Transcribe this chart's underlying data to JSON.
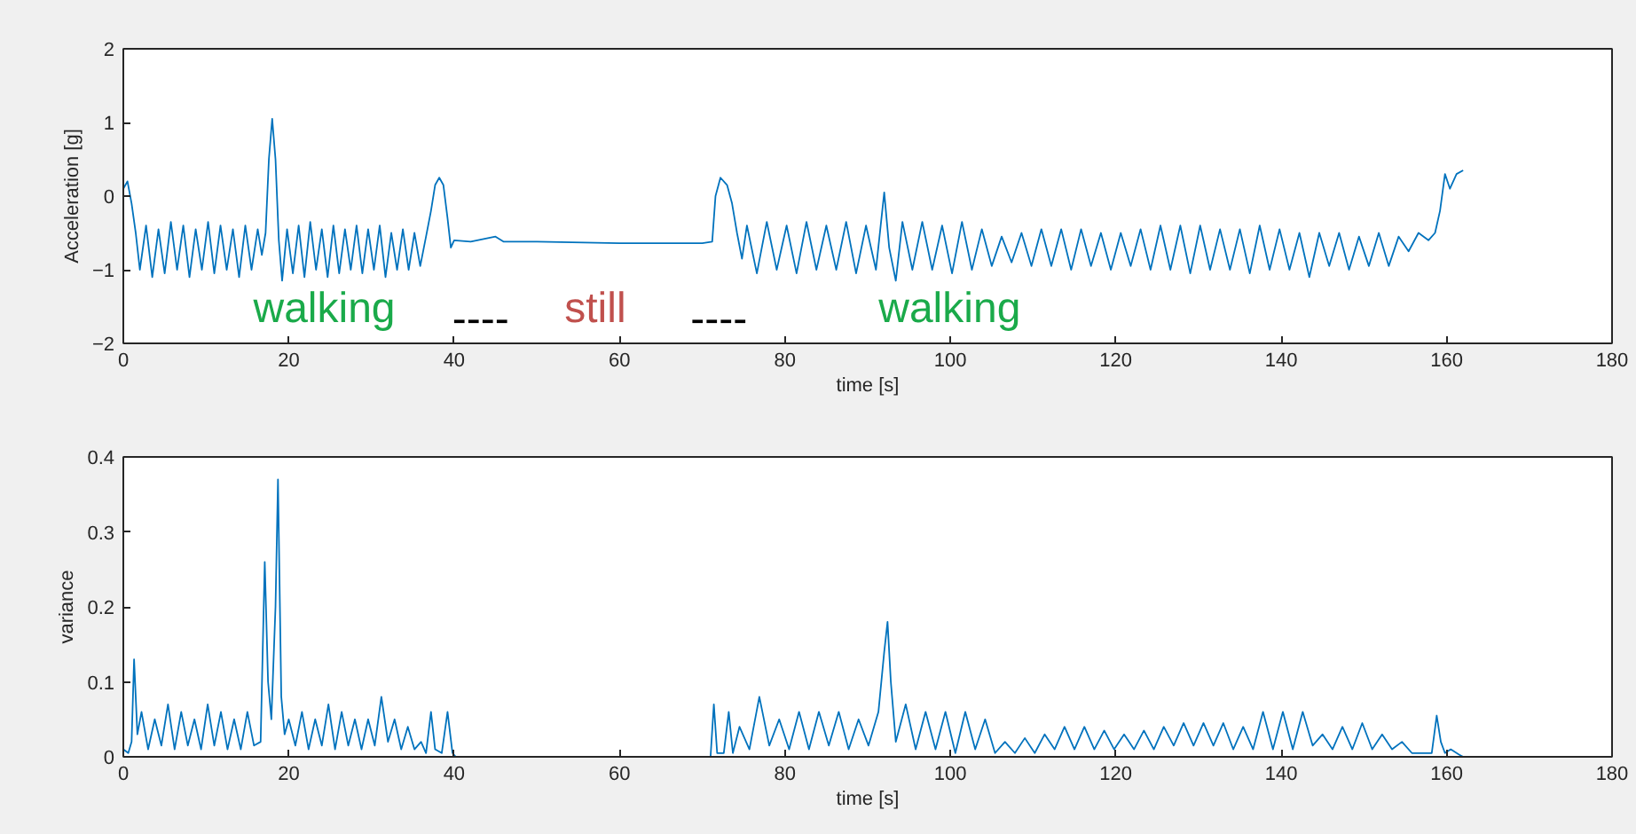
{
  "chart_data": [
    {
      "type": "line",
      "xlabel": "time [s]",
      "ylabel": "Acceleration [g]",
      "xlim": [
        0,
        180
      ],
      "ylim": [
        -2,
        2
      ],
      "xticks": [
        0,
        20,
        40,
        60,
        80,
        100,
        120,
        140,
        160,
        180
      ],
      "yticks": [
        {
          "value": -2,
          "label": "−2"
        },
        {
          "value": -1,
          "label": "−1"
        },
        0,
        1,
        2
      ],
      "grid": false,
      "annotations": [
        "walking",
        "----",
        "still",
        "----",
        "walking"
      ],
      "series": [
        {
          "color": "#0072bd",
          "x": [
            0,
            0.5,
            1,
            1.5,
            2.0,
            2.75,
            3.5,
            4.25,
            5.0,
            5.75,
            6.5,
            7.25,
            8.0,
            8.75,
            9.5,
            10.25,
            11.0,
            11.75,
            12.5,
            13.25,
            14.0,
            14.75,
            15.5,
            16.25,
            16.75,
            17.2,
            17.6,
            18.0,
            18.4,
            18.8,
            19.2,
            19.8,
            20.5,
            21.2,
            21.9,
            22.6,
            23.3,
            24.0,
            24.7,
            25.4,
            26.1,
            26.8,
            27.5,
            28.2,
            28.9,
            29.6,
            30.3,
            31.0,
            31.7,
            32.4,
            33.1,
            33.8,
            34.5,
            35.2,
            35.9,
            36.6,
            37.2,
            37.7,
            38.2,
            38.7,
            39.2,
            39.6,
            40.0,
            42,
            45,
            46,
            50,
            60,
            70,
            71.2,
            71.6,
            72.2,
            73.0,
            73.6,
            74.2,
            74.8,
            75.4,
            76.6,
            77.8,
            79.0,
            80.2,
            81.4,
            82.6,
            83.8,
            85.0,
            86.2,
            87.4,
            88.6,
            89.8,
            91.0,
            92.0,
            92.6,
            93.4,
            94.2,
            95.4,
            96.6,
            97.8,
            99.0,
            100.2,
            101.4,
            102.6,
            103.8,
            105.0,
            106.2,
            107.4,
            108.6,
            109.8,
            111.0,
            112.2,
            113.4,
            114.6,
            115.8,
            117.0,
            118.2,
            119.4,
            120.6,
            121.8,
            123.0,
            124.2,
            125.4,
            126.6,
            127.8,
            129.0,
            130.2,
            131.4,
            132.6,
            133.8,
            135.0,
            136.2,
            137.4,
            138.6,
            139.8,
            141.0,
            142.2,
            143.4,
            144.6,
            145.8,
            147.0,
            148.2,
            149.4,
            150.6,
            151.8,
            153.0,
            154.2,
            155.4,
            156.6,
            157.8,
            158.6,
            159.2,
            159.8,
            160.4,
            161.2,
            162.0
          ],
          "values": [
            0.1,
            0.2,
            -0.1,
            -0.5,
            -1.0,
            -0.4,
            -1.1,
            -0.45,
            -1.05,
            -0.35,
            -1.0,
            -0.4,
            -1.1,
            -0.45,
            -1.0,
            -0.35,
            -1.05,
            -0.4,
            -1.0,
            -0.45,
            -1.1,
            -0.4,
            -1.0,
            -0.45,
            -0.8,
            -0.5,
            0.5,
            1.05,
            0.5,
            -0.6,
            -1.15,
            -0.45,
            -1.05,
            -0.4,
            -1.1,
            -0.35,
            -1.0,
            -0.45,
            -1.1,
            -0.4,
            -1.05,
            -0.45,
            -1.0,
            -0.4,
            -1.05,
            -0.45,
            -1.0,
            -0.4,
            -1.1,
            -0.5,
            -1.0,
            -0.45,
            -1.0,
            -0.5,
            -0.95,
            -0.55,
            -0.2,
            0.15,
            0.25,
            0.15,
            -0.3,
            -0.7,
            -0.6,
            -0.62,
            -0.55,
            -0.62,
            -0.62,
            -0.64,
            -0.64,
            -0.62,
            0.0,
            0.25,
            0.15,
            -0.1,
            -0.5,
            -0.85,
            -0.4,
            -1.05,
            -0.35,
            -1.0,
            -0.4,
            -1.05,
            -0.35,
            -1.0,
            -0.4,
            -1.0,
            -0.35,
            -1.05,
            -0.4,
            -1.0,
            0.05,
            -0.7,
            -1.15,
            -0.35,
            -1.0,
            -0.35,
            -1.0,
            -0.4,
            -1.05,
            -0.35,
            -1.0,
            -0.45,
            -0.95,
            -0.55,
            -0.9,
            -0.5,
            -0.95,
            -0.45,
            -0.95,
            -0.45,
            -1.0,
            -0.45,
            -0.95,
            -0.5,
            -1.0,
            -0.5,
            -0.95,
            -0.45,
            -1.0,
            -0.4,
            -1.0,
            -0.4,
            -1.05,
            -0.4,
            -1.0,
            -0.45,
            -1.0,
            -0.45,
            -1.05,
            -0.4,
            -1.0,
            -0.45,
            -1.0,
            -0.5,
            -1.1,
            -0.5,
            -0.95,
            -0.5,
            -1.0,
            -0.55,
            -0.95,
            -0.5,
            -0.95,
            -0.55,
            -0.75,
            -0.5,
            -0.6,
            -0.5,
            -0.2,
            0.3,
            0.1,
            0.3,
            0.35
          ]
        }
      ]
    },
    {
      "type": "line",
      "xlabel": "time [s]",
      "ylabel": "variance",
      "xlim": [
        0,
        180
      ],
      "ylim": [
        0,
        0.4
      ],
      "xticks": [
        0,
        20,
        40,
        60,
        80,
        100,
        120,
        140,
        160,
        180
      ],
      "yticks": [
        0,
        0.1,
        0.2,
        0.3,
        0.4
      ],
      "grid": false,
      "series": [
        {
          "color": "#0072bd",
          "x": [
            0,
            0.6,
            1.0,
            1.3,
            1.7,
            2.2,
            3.0,
            3.8,
            4.6,
            5.4,
            6.2,
            7.0,
            7.8,
            8.6,
            9.4,
            10.2,
            11.0,
            11.8,
            12.6,
            13.4,
            14.2,
            15.0,
            15.8,
            16.6,
            17.1,
            17.5,
            17.9,
            18.4,
            18.7,
            19.1,
            19.5,
            20.0,
            20.8,
            21.6,
            22.4,
            23.2,
            24.0,
            24.8,
            25.6,
            26.4,
            27.2,
            28.0,
            28.8,
            29.6,
            30.4,
            31.2,
            32.0,
            32.8,
            33.6,
            34.4,
            35.2,
            36.0,
            36.6,
            37.2,
            37.7,
            38.5,
            39.2,
            39.8,
            40.2,
            71.0,
            71.4,
            71.8,
            72.6,
            73.2,
            73.7,
            74.5,
            75.7,
            76.9,
            78.1,
            79.3,
            80.5,
            81.7,
            82.9,
            84.1,
            85.3,
            86.5,
            87.7,
            88.9,
            90.1,
            91.3,
            92.0,
            92.4,
            92.8,
            93.4,
            94.6,
            95.8,
            97.0,
            98.2,
            99.4,
            100.6,
            101.8,
            103.0,
            104.2,
            105.4,
            106.6,
            107.8,
            109.0,
            110.2,
            111.4,
            112.6,
            113.8,
            115.0,
            116.2,
            117.4,
            118.6,
            119.8,
            121.0,
            122.2,
            123.4,
            124.6,
            125.8,
            127.0,
            128.2,
            129.4,
            130.6,
            131.8,
            133.0,
            134.2,
            135.4,
            136.6,
            137.8,
            139.0,
            140.2,
            141.4,
            142.6,
            143.8,
            145.0,
            146.2,
            147.4,
            148.6,
            149.8,
            151.0,
            152.2,
            153.4,
            154.6,
            155.8,
            157.0,
            158.2,
            158.8,
            159.3,
            159.8,
            160.5,
            161.5,
            162.0
          ],
          "values": [
            0.01,
            0.005,
            0.02,
            0.13,
            0.03,
            0.06,
            0.01,
            0.05,
            0.015,
            0.07,
            0.01,
            0.06,
            0.015,
            0.05,
            0.01,
            0.07,
            0.015,
            0.06,
            0.01,
            0.05,
            0.01,
            0.06,
            0.015,
            0.02,
            0.26,
            0.1,
            0.05,
            0.2,
            0.37,
            0.08,
            0.03,
            0.05,
            0.015,
            0.06,
            0.01,
            0.05,
            0.015,
            0.07,
            0.01,
            0.06,
            0.015,
            0.05,
            0.01,
            0.05,
            0.015,
            0.08,
            0.02,
            0.05,
            0.01,
            0.04,
            0.01,
            0.02,
            0.005,
            0.06,
            0.01,
            0.005,
            0.06,
            0.005,
            0,
            0,
            0.07,
            0.005,
            0.005,
            0.06,
            0.005,
            0.04,
            0.01,
            0.08,
            0.015,
            0.05,
            0.01,
            0.06,
            0.01,
            0.06,
            0.015,
            0.06,
            0.01,
            0.05,
            0.015,
            0.06,
            0.14,
            0.18,
            0.1,
            0.02,
            0.07,
            0.01,
            0.06,
            0.01,
            0.06,
            0.005,
            0.06,
            0.01,
            0.05,
            0.005,
            0.02,
            0.005,
            0.025,
            0.005,
            0.03,
            0.01,
            0.04,
            0.01,
            0.04,
            0.01,
            0.035,
            0.01,
            0.03,
            0.01,
            0.035,
            0.01,
            0.04,
            0.015,
            0.045,
            0.015,
            0.045,
            0.015,
            0.045,
            0.01,
            0.04,
            0.01,
            0.06,
            0.01,
            0.06,
            0.01,
            0.06,
            0.015,
            0.03,
            0.01,
            0.04,
            0.01,
            0.045,
            0.01,
            0.03,
            0.01,
            0.02,
            0.005,
            0.005,
            0.005,
            0.055,
            0.02,
            0.005,
            0.01,
            0.003,
            0
          ]
        }
      ]
    }
  ]
}
